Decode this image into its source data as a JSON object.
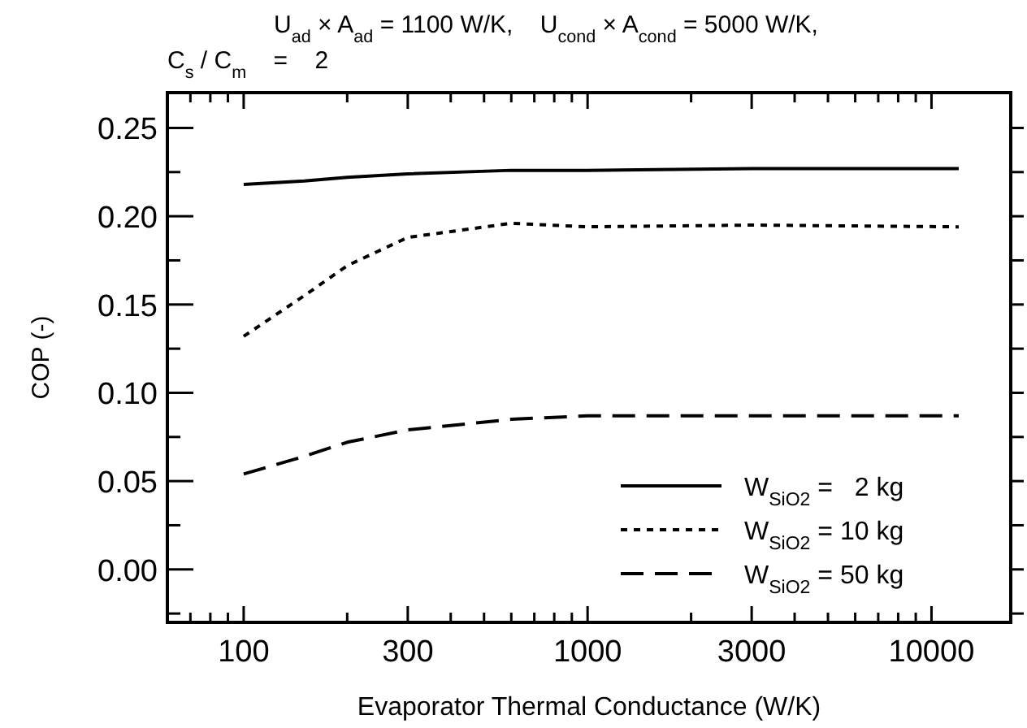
{
  "chart_data": {
    "type": "line",
    "title": "U$_{ad}$ × A$_{ad}$ = 1100 W/K,    U$_{cond}$ × A$_{cond}$ = 5000 W/K,",
    "subtitle": "C$_{s}$ / C$_{m}$    =    2",
    "xlabel": "Evaporator Thermal Conductance (W/K)",
    "ylabel": "COP (-)",
    "log": "x",
    "xlim": [
      60,
      17000
    ],
    "ylim": [
      -0.03,
      0.27
    ],
    "xticks": [
      {
        "value": 60,
        "label": null
      },
      {
        "value": 70,
        "label": null
      },
      {
        "value": 80,
        "label": null
      },
      {
        "value": 90,
        "label": null
      },
      100,
      {
        "value": 200,
        "label": null
      },
      300,
      {
        "value": 400,
        "label": null
      },
      {
        "value": 500,
        "label": null
      },
      {
        "value": 600,
        "label": null
      },
      {
        "value": 700,
        "label": null
      },
      {
        "value": 800,
        "label": null
      },
      {
        "value": 900,
        "label": null
      },
      1000,
      {
        "value": 2000,
        "label": null
      },
      3000,
      {
        "value": 4000,
        "label": null
      },
      {
        "value": 5000,
        "label": null
      },
      {
        "value": 6000,
        "label": null
      },
      {
        "value": 7000,
        "label": null
      },
      {
        "value": 8000,
        "label": null
      },
      {
        "value": 9000,
        "label": null
      },
      10000
    ],
    "yticks": [
      {
        "value": -0.025,
        "label": null
      },
      {
        "value": 0,
        "label": "0.00"
      },
      {
        "value": 0.025,
        "label": null
      },
      {
        "value": 0.05,
        "label": "0.05"
      },
      {
        "value": 0.075,
        "label": null
      },
      {
        "value": 0.1,
        "label": "0.10"
      },
      {
        "value": 0.125,
        "label": null
      },
      {
        "value": 0.15,
        "label": "0.15"
      },
      {
        "value": 0.175,
        "label": null
      },
      {
        "value": 0.2,
        "label": "0.20"
      },
      {
        "value": 0.225,
        "label": null
      },
      {
        "value": 0.25,
        "label": "0.25"
      }
    ],
    "grid": false,
    "legend": "bottom right",
    "x": [
      100,
      150,
      200,
      300,
      600,
      1000,
      3000,
      12000
    ],
    "series": [
      {
        "name": "W$_{SiO2}$ =   2 kg",
        "color": "#000000",
        "line_style": "solid",
        "values": [
          0.218,
          0.22,
          0.222,
          0.224,
          0.226,
          0.226,
          0.227,
          0.227
        ]
      },
      {
        "name": "W$_{SiO2}$ = 10 kg",
        "color": "#000000",
        "line_style": "dotted",
        "values": [
          0.132,
          0.155,
          0.172,
          0.188,
          0.196,
          0.194,
          0.195,
          0.194
        ]
      },
      {
        "name": "W$_{SiO2}$ = 50 kg",
        "color": "#000000",
        "line_style": "dashed",
        "values": [
          0.054,
          0.064,
          0.072,
          0.079,
          0.085,
          0.087,
          0.087,
          0.087
        ]
      }
    ]
  }
}
